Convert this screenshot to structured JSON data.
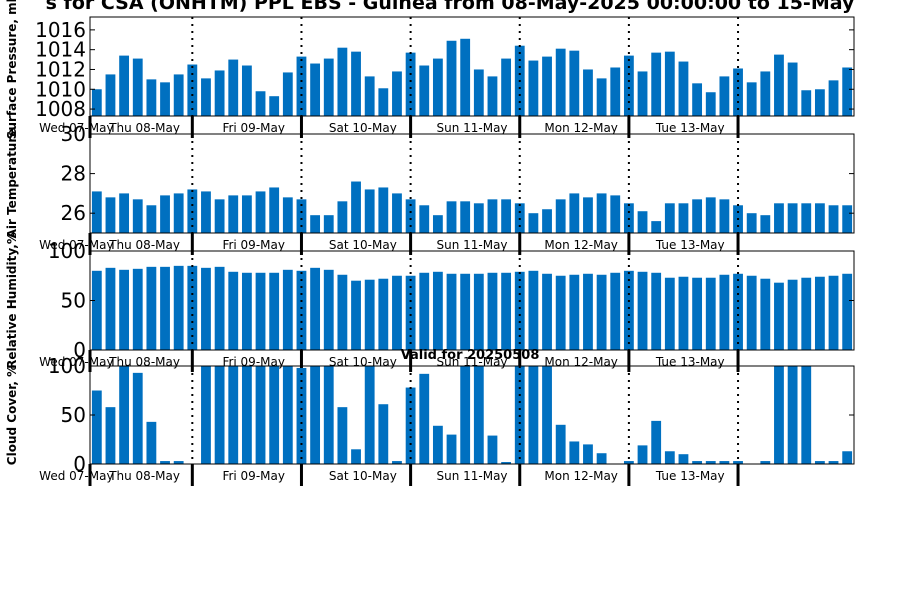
{
  "title": "s for CSA (ONHTM) PPL EBS  - Guinea from 08-May-2025 00:00:00 to 15-May",
  "footer": "Valid for 20250508",
  "bar_color": "#0070c0",
  "day_labels": [
    "Wed 07-May",
    "Thu 08-May",
    "Fri 09-May",
    "Sat 10-May",
    "Sun 11-May",
    "Mon 12-May",
    "Tue 13-May"
  ],
  "chart_data": [
    {
      "type": "bar",
      "ylabel": "Surface Pressure, mb",
      "ylim": [
        1007.3,
        1017.3
      ],
      "yticks": [
        1008,
        1010,
        1012,
        1014,
        1016
      ],
      "grid": false,
      "values": [
        1010.0,
        1011.5,
        1013.4,
        1013.1,
        1011.0,
        1010.7,
        1011.5,
        1012.5,
        1011.1,
        1011.9,
        1013.0,
        1012.4,
        1009.8,
        1009.3,
        1011.7,
        1013.3,
        1012.6,
        1013.1,
        1014.2,
        1013.8,
        1011.3,
        1010.1,
        1011.8,
        1013.7,
        1012.4,
        1013.1,
        1014.9,
        1015.1,
        1012.0,
        1011.3,
        1013.1,
        1014.4,
        1012.9,
        1013.3,
        1014.1,
        1013.9,
        1012.0,
        1011.1,
        1012.2,
        1013.4,
        1011.8,
        1013.7,
        1013.8,
        1012.8,
        1010.6,
        1009.7,
        1011.3,
        1012.1,
        1010.7,
        1011.8,
        1013.5,
        1012.7,
        1009.9,
        1010.0,
        1010.9,
        1012.2
      ]
    },
    {
      "type": "bar",
      "ylabel": "Air Temperature",
      "ylim": [
        25.0,
        30.0
      ],
      "yticks": [
        26,
        28,
        30
      ],
      "grid": false,
      "values": [
        27.1,
        26.8,
        27.0,
        26.7,
        26.4,
        26.9,
        27.0,
        27.2,
        27.1,
        26.7,
        26.9,
        26.9,
        27.1,
        27.3,
        26.8,
        26.7,
        25.9,
        25.9,
        26.6,
        27.6,
        27.2,
        27.3,
        27.0,
        26.7,
        26.4,
        25.9,
        26.6,
        26.6,
        26.5,
        26.7,
        26.7,
        26.5,
        26.0,
        26.2,
        26.7,
        27.0,
        26.8,
        27.0,
        26.9,
        26.5,
        26.1,
        25.6,
        26.5,
        26.5,
        26.7,
        26.8,
        26.7,
        26.4,
        26.0,
        25.9,
        26.5,
        26.5,
        26.5,
        26.5,
        26.4,
        26.4
      ]
    },
    {
      "type": "bar",
      "ylabel": "Relative Humidity,%",
      "ylim": [
        0,
        100
      ],
      "yticks": [
        0,
        50,
        100
      ],
      "grid": false,
      "values": [
        80,
        83,
        81,
        82,
        84,
        84,
        85,
        85,
        83,
        84,
        79,
        78,
        78,
        78,
        81,
        80,
        83,
        81,
        76,
        70,
        71,
        72,
        75,
        75,
        78,
        79,
        77,
        77,
        77,
        78,
        78,
        79,
        80,
        77,
        75,
        76,
        77,
        76,
        78,
        80,
        79,
        78,
        73,
        74,
        73,
        73,
        76,
        77,
        75,
        72,
        68,
        71,
        73,
        74,
        75,
        77
      ]
    },
    {
      "type": "bar",
      "ylabel": "Cloud Cover, %",
      "ylim": [
        0,
        100
      ],
      "yticks": [
        0,
        50,
        100
      ],
      "grid": false,
      "values": [
        75,
        58,
        100,
        93,
        43,
        3,
        3,
        0,
        100,
        100,
        100,
        100,
        100,
        100,
        100,
        98,
        100,
        100,
        58,
        15,
        100,
        61,
        3,
        78,
        92,
        39,
        30,
        100,
        100,
        29,
        2,
        100,
        100,
        100,
        40,
        23,
        20,
        11,
        0,
        3,
        19,
        44,
        13,
        10,
        3,
        3,
        3,
        3,
        0,
        3,
        100,
        100,
        100,
        3,
        3,
        13
      ]
    }
  ]
}
